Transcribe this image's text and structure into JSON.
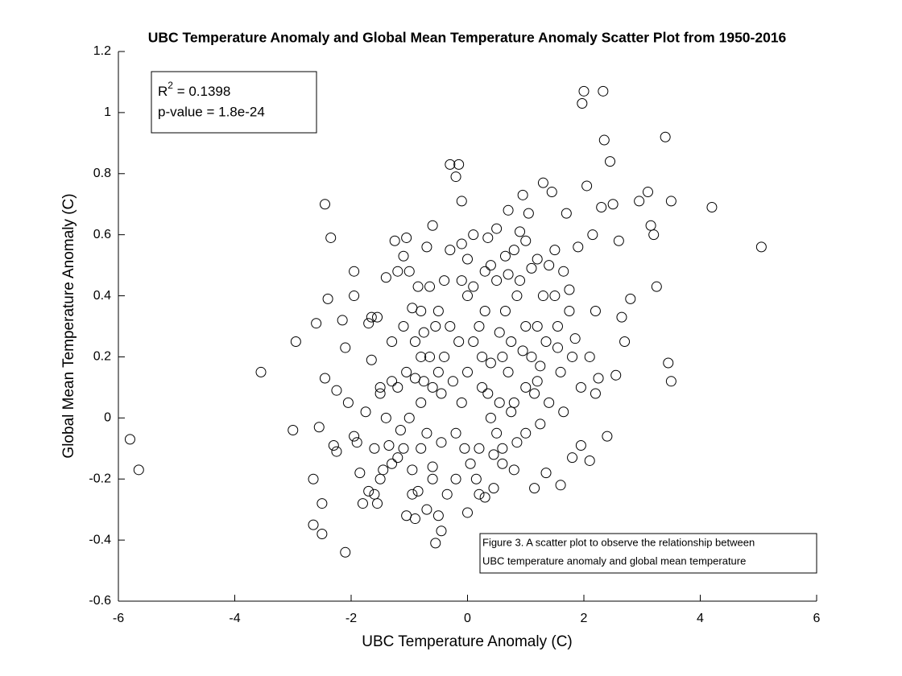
{
  "chart_data": {
    "type": "scatter",
    "title": "UBC Temperature Anomaly and Global Mean Temperature Anomaly Scatter Plot from 1950-2016",
    "x_label": "UBC Temperature Anomaly (C)",
    "y_label": "Global Mean Temperature Anomaly (C)",
    "stats": {
      "r_symbol": "R",
      "r_power": "2",
      "r_text": " = 0.1398",
      "p_text": "p-value = 1.8e-24"
    },
    "caption": [
      "Figure 3. A scatter plot to observe the relationship between",
      "UBC temperature anomaly and global mean temperature"
    ],
    "xlim": [
      -6,
      6
    ],
    "xticks": [
      -6,
      -4,
      -2,
      0,
      2,
      4,
      6
    ],
    "ylim": [
      -0.6,
      1.2
    ],
    "yticks": [
      -0.6,
      -0.4,
      -0.2,
      0,
      0.2,
      0.4,
      0.6,
      0.8,
      1,
      1.2
    ],
    "color": "#000000",
    "x": [
      -5.8,
      -5.65,
      -3.55,
      -3.0,
      -2.95,
      -2.65,
      -2.65,
      -2.6,
      -2.55,
      -2.45,
      -2.5,
      -2.5,
      -2.45,
      -2.4,
      -2.35,
      -2.3,
      -2.25,
      -2.25,
      -2.15,
      -2.1,
      -2.1,
      -2.05,
      -1.95,
      -1.95,
      -1.95,
      -1.9,
      -1.85,
      -1.8,
      -1.75,
      -1.7,
      -1.7,
      -1.65,
      -1.65,
      -1.6,
      -1.6,
      -1.55,
      -1.55,
      -1.5,
      -1.5,
      -1.45,
      -1.4,
      -1.35,
      -1.3,
      -1.3,
      -1.25,
      -1.2,
      -1.2,
      -1.15,
      -1.1,
      -1.1,
      -1.05,
      -1.05,
      -1.0,
      -0.95,
      -0.95,
      -0.9,
      -0.9,
      -0.85,
      -0.85,
      -0.8,
      -0.8,
      -0.75,
      -0.7,
      -0.7,
      -0.65,
      -0.6,
      -0.6,
      -0.55,
      -0.5,
      -0.5,
      -0.45,
      -0.45,
      -0.3,
      -0.2,
      -0.15,
      -0.1,
      -0.1,
      0.0,
      0.0,
      0.1,
      0.15,
      0.2,
      0.25,
      0.3,
      0.35,
      0.4,
      0.45,
      0.5,
      0.55,
      0.6,
      0.65,
      0.7,
      0.75,
      0.8,
      0.85,
      0.9,
      0.95,
      1.0,
      1.05,
      1.1,
      1.15,
      1.2,
      1.25,
      1.3,
      1.35,
      1.45,
      1.5,
      1.55,
      1.6,
      1.65,
      1.7,
      1.75,
      1.8,
      1.85,
      1.9,
      1.95,
      1.97,
      2.0,
      2.05,
      2.1,
      2.15,
      2.2,
      2.25,
      2.3,
      2.33,
      2.35,
      2.4,
      2.45,
      2.5,
      2.55,
      2.6,
      2.65,
      2.7,
      2.8,
      2.95,
      3.1,
      3.15,
      3.2,
      3.25,
      3.4,
      3.45,
      3.5,
      3.5,
      4.2,
      5.05,
      -1.0,
      -0.8,
      -0.6,
      -0.4,
      -0.2,
      0.0,
      0.2,
      0.4,
      0.6,
      0.8,
      1.0,
      1.2,
      -0.9,
      -0.7,
      -0.5,
      -0.3,
      -0.1,
      0.1,
      0.3,
      0.5,
      0.7,
      0.9,
      1.1,
      1.3,
      -1.2,
      -1.1,
      -0.6,
      -0.2,
      0.2,
      0.6,
      1.0,
      1.4,
      1.6,
      1.8,
      1.4,
      0.8,
      0.4,
      0.0,
      -0.4,
      -0.8,
      -0.3,
      0.1,
      0.5,
      1.0,
      1.2,
      -1.4,
      -1.3,
      -0.95,
      -0.35,
      0.05,
      0.45,
      0.85,
      1.25,
      1.65,
      1.95,
      2.1,
      2.2,
      1.75,
      1.55,
      0.65,
      0.25,
      -0.15,
      -0.55,
      -1.05,
      -1.5,
      -0.75,
      -0.25,
      0.35,
      0.75,
      1.15,
      -0.05,
      0.55,
      0.95,
      1.35,
      -0.45,
      -0.65,
      1.5,
      0.3,
      -0.1,
      0.7
    ],
    "y": [
      -0.07,
      -0.17,
      0.15,
      -0.04,
      0.25,
      -0.2,
      -0.35,
      0.31,
      -0.03,
      0.7,
      -0.28,
      -0.38,
      0.13,
      0.39,
      0.59,
      -0.09,
      -0.11,
      0.09,
      0.32,
      0.23,
      -0.44,
      0.05,
      0.48,
      0.4,
      -0.06,
      -0.08,
      -0.18,
      -0.28,
      0.02,
      0.31,
      -0.24,
      0.33,
      0.19,
      -0.25,
      -0.1,
      0.33,
      -0.28,
      -0.2,
      0.08,
      -0.17,
      0.46,
      -0.09,
      0.25,
      0.12,
      0.58,
      0.48,
      -0.13,
      -0.04,
      0.53,
      0.3,
      0.59,
      -0.32,
      0.48,
      0.36,
      -0.17,
      0.13,
      -0.33,
      0.43,
      -0.24,
      0.2,
      0.05,
      0.28,
      0.56,
      -0.3,
      0.43,
      0.63,
      -0.16,
      -0.41,
      0.35,
      -0.32,
      0.08,
      -0.37,
      0.83,
      0.79,
      0.83,
      0.71,
      0.57,
      0.52,
      -0.31,
      0.43,
      -0.2,
      0.3,
      0.1,
      -0.26,
      0.59,
      0.18,
      -0.23,
      0.45,
      0.05,
      -0.15,
      0.53,
      0.68,
      0.25,
      -0.17,
      0.4,
      0.61,
      0.73,
      0.1,
      0.67,
      0.49,
      -0.23,
      0.3,
      0.17,
      0.77,
      -0.18,
      0.74,
      0.55,
      0.23,
      -0.22,
      0.48,
      0.67,
      0.35,
      -0.13,
      0.26,
      0.56,
      -0.09,
      1.03,
      1.07,
      0.76,
      -0.14,
      0.6,
      0.08,
      0.13,
      0.69,
      1.07,
      0.91,
      -0.06,
      0.84,
      0.7,
      0.14,
      0.58,
      0.33,
      0.25,
      0.39,
      0.71,
      0.74,
      0.63,
      0.6,
      0.43,
      0.92,
      0.18,
      0.12,
      0.71,
      0.69,
      0.56,
      0.0,
      -0.1,
      0.1,
      0.2,
      -0.05,
      0.15,
      -0.1,
      0.0,
      0.2,
      0.05,
      0.3,
      0.12,
      0.25,
      -0.05,
      0.15,
      0.3,
      0.05,
      0.25,
      0.35,
      -0.05,
      0.15,
      0.45,
      0.2,
      0.4,
      0.1,
      -0.1,
      -0.2,
      -0.2,
      -0.25,
      -0.1,
      -0.05,
      0.05,
      0.15,
      0.2,
      0.5,
      0.55,
      0.5,
      0.4,
      0.45,
      0.35,
      0.55,
      0.6,
      0.62,
      0.58,
      0.52,
      0.0,
      -0.15,
      -0.25,
      -0.25,
      -0.15,
      -0.12,
      -0.08,
      -0.02,
      0.02,
      0.1,
      0.2,
      0.35,
      0.42,
      0.3,
      0.35,
      0.2,
      0.25,
      0.3,
      0.15,
      0.1,
      0.12,
      0.12,
      0.08,
      0.02,
      0.08,
      -0.1,
      0.28,
      0.22,
      0.25,
      -0.08,
      0.2,
      0.4,
      0.48,
      0.45,
      0.47
    ]
  }
}
